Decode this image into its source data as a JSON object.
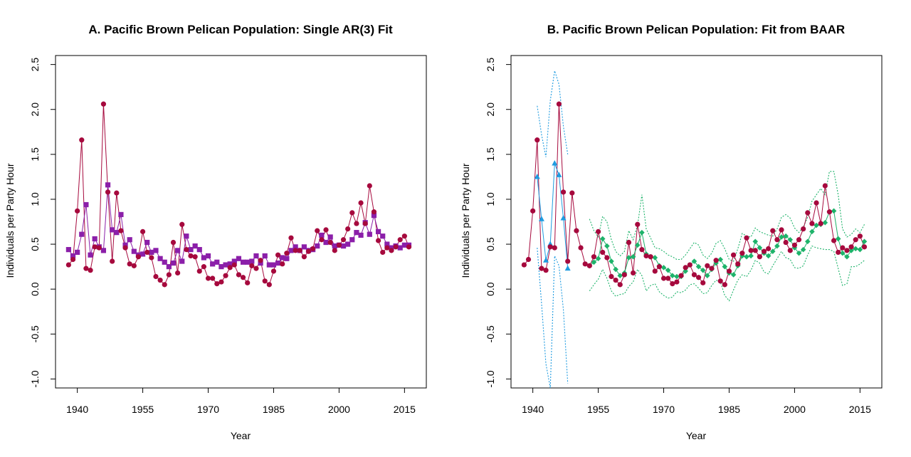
{
  "chart_data": [
    {
      "type": "line",
      "title": "A. Pacific Brown Pelican Population: Single AR(3) Fit",
      "xlabel": "Year",
      "ylabel": "Individuals per Party Hour",
      "xlim": [
        1935,
        2020
      ],
      "ylim": [
        -1.1,
        2.6
      ],
      "xticks": [
        "1940",
        "1955",
        "1970",
        "1985",
        "2000",
        "2015"
      ],
      "yticks": [
        "-1.0",
        "-0.5",
        "0.0",
        "0.5",
        "1.0",
        "1.5",
        "2.0",
        "2.5"
      ],
      "grid": false,
      "colors": {
        "observed": "#A6093D",
        "fit": "#8B1FA9"
      },
      "series": [
        {
          "role": "observed",
          "x": [
            1938,
            1939,
            1940,
            1941,
            1942,
            1943,
            1944,
            1945,
            1946,
            1947,
            1948,
            1949,
            1950,
            1951,
            1952,
            1953,
            1954,
            1955,
            1956,
            1957,
            1958,
            1959,
            1960,
            1961,
            1962,
            1963,
            1964,
            1965,
            1966,
            1967,
            1968,
            1969,
            1970,
            1971,
            1972,
            1973,
            1974,
            1975,
            1976,
            1977,
            1978,
            1979,
            1980,
            1981,
            1982,
            1983,
            1984,
            1985,
            1986,
            1987,
            1988,
            1989,
            1990,
            1991,
            1992,
            1993,
            1994,
            1995,
            1996,
            1997,
            1998,
            1999,
            2000,
            2001,
            2002,
            2003,
            2004,
            2005,
            2006,
            2007,
            2008,
            2009,
            2010,
            2011,
            2012,
            2013,
            2014,
            2015,
            2016
          ],
          "y": [
            0.27,
            0.33,
            0.87,
            1.66,
            0.23,
            0.21,
            0.47,
            0.46,
            2.06,
            1.08,
            0.31,
            1.07,
            0.65,
            0.46,
            0.28,
            0.26,
            0.36,
            0.64,
            0.41,
            0.35,
            0.14,
            0.1,
            0.05,
            0.16,
            0.52,
            0.18,
            0.72,
            0.44,
            0.37,
            0.36,
            0.2,
            0.25,
            0.12,
            0.12,
            0.06,
            0.08,
            0.15,
            0.24,
            0.27,
            0.16,
            0.13,
            0.07,
            0.26,
            0.23,
            0.32,
            0.09,
            0.05,
            0.2,
            0.38,
            0.28,
            0.4,
            0.57,
            0.43,
            0.43,
            0.36,
            0.42,
            0.45,
            0.65,
            0.55,
            0.66,
            0.52,
            0.43,
            0.49,
            0.55,
            0.67,
            0.85,
            0.73,
            0.96,
            0.73,
            1.15,
            0.86,
            0.54,
            0.41,
            0.46,
            0.43,
            0.47,
            0.55,
            0.59,
            0.47
          ]
        },
        {
          "role": "fit",
          "x": [
            1938,
            1939,
            1940,
            1941,
            1942,
            1943,
            1944,
            1945,
            1946,
            1947,
            1948,
            1949,
            1950,
            1951,
            1952,
            1953,
            1954,
            1955,
            1956,
            1957,
            1958,
            1959,
            1960,
            1961,
            1962,
            1963,
            1964,
            1965,
            1966,
            1967,
            1968,
            1969,
            1970,
            1971,
            1972,
            1973,
            1974,
            1975,
            1976,
            1977,
            1978,
            1979,
            1980,
            1981,
            1982,
            1983,
            1984,
            1985,
            1986,
            1987,
            1988,
            1989,
            1990,
            1991,
            1992,
            1993,
            1994,
            1995,
            1996,
            1997,
            1998,
            1999,
            2000,
            2001,
            2002,
            2003,
            2004,
            2005,
            2006,
            2007,
            2008,
            2009,
            2010,
            2011,
            2012,
            2013,
            2014,
            2015,
            2016
          ],
          "y": [
            0.44,
            0.37,
            0.41,
            0.61,
            0.94,
            0.38,
            0.56,
            0.47,
            0.43,
            1.16,
            0.66,
            0.63,
            0.83,
            0.49,
            0.55,
            0.42,
            0.38,
            0.39,
            0.52,
            0.41,
            0.43,
            0.34,
            0.3,
            0.25,
            0.29,
            0.43,
            0.31,
            0.59,
            0.44,
            0.48,
            0.44,
            0.35,
            0.37,
            0.28,
            0.3,
            0.25,
            0.27,
            0.28,
            0.31,
            0.34,
            0.3,
            0.3,
            0.31,
            0.37,
            0.29,
            0.37,
            0.27,
            0.27,
            0.29,
            0.35,
            0.34,
            0.43,
            0.47,
            0.43,
            0.47,
            0.43,
            0.44,
            0.48,
            0.6,
            0.52,
            0.58,
            0.48,
            0.49,
            0.48,
            0.5,
            0.55,
            0.63,
            0.6,
            0.74,
            0.61,
            0.82,
            0.64,
            0.59,
            0.5,
            0.46,
            0.48,
            0.46,
            0.49,
            0.49
          ]
        }
      ]
    },
    {
      "type": "line",
      "title": "B. Pacific Brown Pelican Population: Fit from BAAR",
      "xlabel": "Year",
      "ylabel": "Individuals per Party Hour",
      "xlim": [
        1935,
        2020
      ],
      "ylim": [
        -1.1,
        2.6
      ],
      "xticks": [
        "1940",
        "1955",
        "1970",
        "1985",
        "2000",
        "2015"
      ],
      "yticks": [
        "-1.0",
        "-0.5",
        "0.0",
        "0.5",
        "1.0",
        "1.5",
        "2.0",
        "2.5"
      ],
      "grid": false,
      "colors": {
        "observed": "#A6093D",
        "early_fit": "#1E9BE0",
        "late_fit": "#1DB36A"
      },
      "series": [
        {
          "role": "observed",
          "x": [
            1938,
            1939,
            1940,
            1941,
            1942,
            1943,
            1944,
            1945,
            1946,
            1947,
            1948,
            1949,
            1950,
            1951,
            1952,
            1953,
            1954,
            1955,
            1956,
            1957,
            1958,
            1959,
            1960,
            1961,
            1962,
            1963,
            1964,
            1965,
            1966,
            1967,
            1968,
            1969,
            1970,
            1971,
            1972,
            1973,
            1974,
            1975,
            1976,
            1977,
            1978,
            1979,
            1980,
            1981,
            1982,
            1983,
            1984,
            1985,
            1986,
            1987,
            1988,
            1989,
            1990,
            1991,
            1992,
            1993,
            1994,
            1995,
            1996,
            1997,
            1998,
            1999,
            2000,
            2001,
            2002,
            2003,
            2004,
            2005,
            2006,
            2007,
            2008,
            2009,
            2010,
            2011,
            2012,
            2013,
            2014,
            2015,
            2016
          ],
          "y": [
            0.27,
            0.33,
            0.87,
            1.66,
            0.23,
            0.21,
            0.47,
            0.46,
            2.06,
            1.08,
            0.31,
            1.07,
            0.65,
            0.46,
            0.28,
            0.26,
            0.36,
            0.64,
            0.41,
            0.35,
            0.14,
            0.1,
            0.05,
            0.16,
            0.52,
            0.18,
            0.72,
            0.44,
            0.37,
            0.36,
            0.2,
            0.25,
            0.12,
            0.12,
            0.06,
            0.08,
            0.15,
            0.24,
            0.27,
            0.16,
            0.13,
            0.07,
            0.26,
            0.23,
            0.32,
            0.09,
            0.05,
            0.2,
            0.38,
            0.28,
            0.4,
            0.57,
            0.43,
            0.43,
            0.36,
            0.42,
            0.45,
            0.65,
            0.55,
            0.66,
            0.52,
            0.43,
            0.49,
            0.55,
            0.67,
            0.85,
            0.73,
            0.96,
            0.73,
            1.15,
            0.86,
            0.54,
            0.41,
            0.46,
            0.43,
            0.47,
            0.55,
            0.59,
            0.47
          ]
        },
        {
          "role": "early_fit",
          "x": [
            1941,
            1942,
            1943,
            1944,
            1945,
            1946,
            1947,
            1948
          ],
          "y": [
            1.25,
            0.78,
            0.32,
            0.5,
            1.4,
            1.27,
            0.79,
            0.23
          ],
          "upper": [
            2.04,
            1.72,
            1.47,
            2.1,
            2.43,
            2.28,
            1.81,
            1.5
          ],
          "lower": [
            0.46,
            -0.16,
            -0.83,
            -1.1,
            0.37,
            0.26,
            -0.23,
            -1.05
          ]
        },
        {
          "role": "late_fit",
          "x": [
            1953,
            1954,
            1955,
            1956,
            1957,
            1958,
            1959,
            1960,
            1961,
            1962,
            1963,
            1964,
            1965,
            1966,
            1967,
            1968,
            1969,
            1970,
            1971,
            1972,
            1973,
            1974,
            1975,
            1976,
            1977,
            1978,
            1979,
            1980,
            1981,
            1982,
            1983,
            1984,
            1985,
            1986,
            1987,
            1988,
            1989,
            1990,
            1991,
            1992,
            1993,
            1994,
            1995,
            1996,
            1997,
            1998,
            1999,
            2000,
            2001,
            2002,
            2003,
            2004,
            2005,
            2006,
            2007,
            2008,
            2009,
            2010,
            2011,
            2012,
            2013,
            2014,
            2015,
            2016
          ],
          "y": [
            0.26,
            0.3,
            0.34,
            0.56,
            0.48,
            0.31,
            0.22,
            0.15,
            0.18,
            0.35,
            0.36,
            0.49,
            0.63,
            0.39,
            0.36,
            0.35,
            0.26,
            0.24,
            0.21,
            0.15,
            0.14,
            0.14,
            0.2,
            0.27,
            0.31,
            0.25,
            0.21,
            0.15,
            0.22,
            0.29,
            0.33,
            0.25,
            0.18,
            0.16,
            0.26,
            0.37,
            0.36,
            0.37,
            0.53,
            0.46,
            0.4,
            0.37,
            0.42,
            0.48,
            0.58,
            0.59,
            0.55,
            0.46,
            0.4,
            0.44,
            0.53,
            0.64,
            0.71,
            0.72,
            0.74,
            0.86,
            0.87,
            0.56,
            0.4,
            0.36,
            0.43,
            0.45,
            0.44,
            0.53
          ],
          "upper": [
            0.78,
            0.65,
            0.58,
            0.81,
            0.75,
            0.55,
            0.42,
            0.37,
            0.42,
            0.65,
            0.55,
            0.71,
            1.05,
            0.67,
            0.57,
            0.46,
            0.45,
            0.42,
            0.38,
            0.36,
            0.33,
            0.33,
            0.38,
            0.45,
            0.52,
            0.49,
            0.38,
            0.34,
            0.4,
            0.51,
            0.54,
            0.45,
            0.33,
            0.31,
            0.45,
            0.62,
            0.59,
            0.58,
            0.68,
            0.64,
            0.62,
            0.6,
            0.59,
            0.67,
            0.8,
            0.83,
            0.79,
            0.68,
            0.63,
            0.69,
            0.8,
            0.98,
            1.05,
            1.12,
            1.05,
            1.31,
            1.31,
            1.05,
            0.67,
            0.58,
            0.61,
            0.67,
            0.63,
            0.72
          ],
          "lower": [
            -0.02,
            0.05,
            0.11,
            0.22,
            0.12,
            -0.02,
            -0.08,
            -0.06,
            -0.05,
            0.03,
            0.08,
            0.22,
            0.15,
            -0.02,
            0.04,
            0.06,
            -0.03,
            -0.07,
            -0.1,
            -0.09,
            -0.03,
            -0.04,
            -0.01,
            0.05,
            0.06,
            0.01,
            -0.05,
            -0.04,
            0.04,
            0.1,
            0.08,
            -0.07,
            -0.13,
            -0.01,
            0.1,
            0.16,
            0.14,
            0.21,
            0.32,
            0.29,
            0.19,
            0.17,
            0.26,
            0.34,
            0.42,
            0.35,
            0.33,
            0.24,
            0.23,
            0.26,
            0.38,
            0.48,
            0.46,
            0.45,
            0.44,
            0.44,
            0.42,
            0.23,
            0.04,
            0.06,
            0.25,
            0.25,
            0.28,
            0.32
          ]
        }
      ]
    }
  ]
}
